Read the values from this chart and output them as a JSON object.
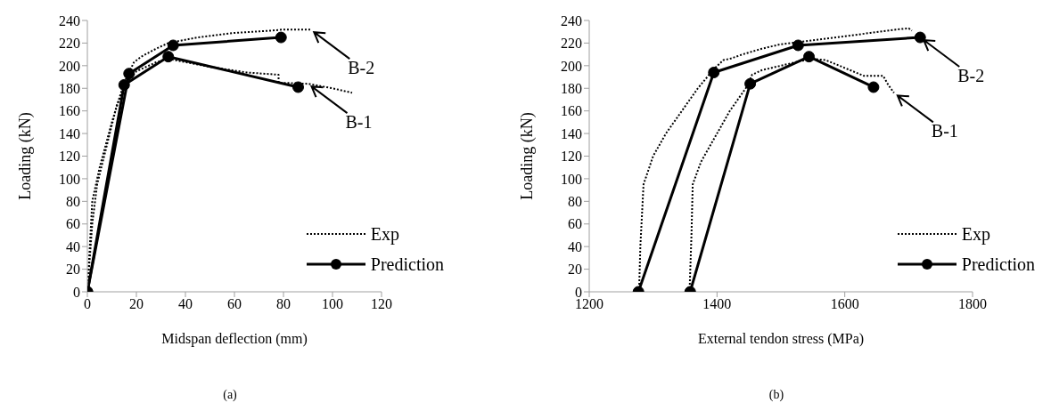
{
  "chart_data": [
    {
      "type": "line",
      "xlabel": "Midspan deflection (mm)",
      "ylabel": "Loading (kN)",
      "xlim": [
        0,
        120
      ],
      "xticks": [
        0,
        20,
        40,
        60,
        80,
        100,
        120
      ],
      "ylim": [
        0,
        240
      ],
      "yticks": [
        0,
        20,
        40,
        60,
        80,
        100,
        120,
        140,
        160,
        180,
        200,
        220,
        240
      ],
      "grid": false,
      "legend": "bottom right",
      "annotations": [
        "(a)",
        {
          "text": "B-2",
          "x": 91,
          "y": 232
        },
        {
          "text": "B-1",
          "x": 90,
          "y": 184
        }
      ],
      "series": [
        {
          "name": "Exp",
          "color": "#000000",
          "line_style": "dotted",
          "marker": "none",
          "x": [
            0,
            2,
            4,
            8,
            12,
            16,
            20,
            28,
            33,
            50,
            65,
            78,
            78,
            90,
            100,
            108
          ],
          "values": [
            0,
            60,
            95,
            130,
            165,
            185,
            195,
            203,
            206,
            199,
            194,
            192,
            185,
            184,
            180,
            176
          ]
        },
        {
          "color": "#000000",
          "line_style": "dotted",
          "marker": "none",
          "x": [
            0,
            2,
            5,
            10,
            15,
            19,
            22,
            28,
            33,
            45,
            60,
            75,
            80,
            90,
            91
          ],
          "values": [
            0,
            80,
            110,
            150,
            185,
            203,
            208,
            215,
            220,
            225,
            229,
            231,
            232,
            232,
            232
          ]
        },
        {
          "name": "Prediction",
          "color": "#000000",
          "line_style": "solid",
          "marker": "circle",
          "x": [
            0,
            15,
            33,
            86
          ],
          "values": [
            0,
            183,
            208,
            181
          ]
        },
        {
          "color": "#000000",
          "line_style": "solid",
          "marker": "circle",
          "x": [
            0,
            17,
            35,
            79
          ],
          "values": [
            0,
            193,
            218,
            225
          ]
        }
      ]
    },
    {
      "type": "line",
      "xlabel": "External tendon stress (MPa)",
      "ylabel": "Loading (kN)",
      "xlim": [
        1200,
        1800
      ],
      "xticks": [
        1200,
        1400,
        1600,
        1800
      ],
      "ylim": [
        0,
        240
      ],
      "yticks": [
        0,
        20,
        40,
        60,
        80,
        100,
        120,
        140,
        160,
        180,
        200,
        220,
        240
      ],
      "grid": false,
      "legend": "bottom right",
      "annotations": [
        "(b)",
        {
          "text": "B-2",
          "x": 1718,
          "y": 225
        },
        {
          "text": "B-1",
          "x": 1677,
          "y": 176
        }
      ],
      "series": [
        {
          "name": "Exp",
          "color": "#000000",
          "line_style": "dotted",
          "marker": "none",
          "x": [
            1357,
            1360,
            1362,
            1375,
            1395,
            1420,
            1445,
            1455,
            1470,
            1500,
            1530,
            1550,
            1570,
            1600,
            1630,
            1660,
            1668,
            1677
          ],
          "values": [
            0,
            50,
            95,
            115,
            135,
            160,
            180,
            192,
            196,
            200,
            204,
            206,
            205,
            198,
            191,
            191,
            183,
            176
          ]
        },
        {
          "color": "#000000",
          "line_style": "dotted",
          "marker": "none",
          "x": [
            1278,
            1280,
            1285,
            1300,
            1320,
            1345,
            1370,
            1395,
            1410,
            1420,
            1440,
            1470,
            1500,
            1530,
            1600,
            1640,
            1680,
            1700,
            1705
          ],
          "values": [
            0,
            40,
            95,
            120,
            140,
            160,
            180,
            197,
            205,
            206,
            210,
            215,
            219,
            221,
            226,
            229,
            232,
            233,
            231
          ]
        },
        {
          "name": "Prediction",
          "color": "#000000",
          "line_style": "solid",
          "marker": "circle",
          "x": [
            1358,
            1452,
            1544,
            1645
          ],
          "values": [
            0,
            184,
            208,
            181
          ]
        },
        {
          "color": "#000000",
          "line_style": "solid",
          "marker": "circle",
          "x": [
            1277,
            1395,
            1527,
            1718
          ],
          "values": [
            0,
            194,
            218,
            225
          ]
        }
      ]
    }
  ]
}
